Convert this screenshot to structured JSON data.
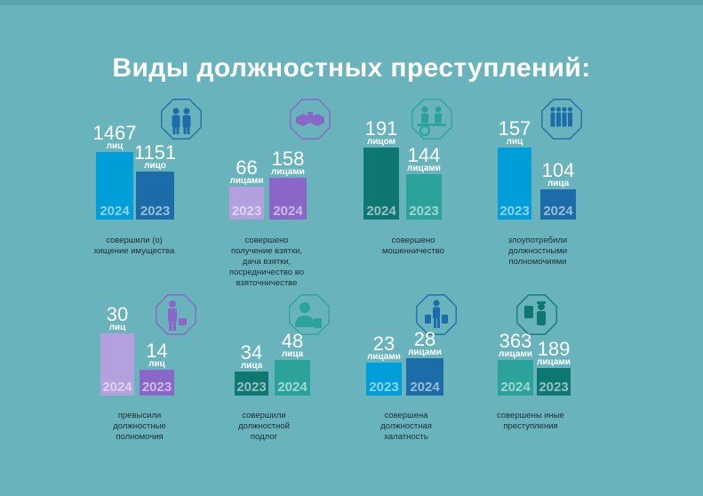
{
  "title": "Виды должностных преступлений:",
  "chart_data": {
    "type": "bar",
    "title": "Виды должностных преступлений:",
    "groups": [
      {
        "id": "theft",
        "caption": "совершили (о)\nхищение имущества",
        "icon": "two-people-icon",
        "bars": [
          {
            "year": "2024",
            "value": 1467,
            "value_label": "1467",
            "unit": "лиц",
            "color": "#009ed8"
          },
          {
            "year": "2023",
            "value": 1151,
            "value_label": "1151",
            "unit": "лицо",
            "color": "#1b6ca8"
          }
        ]
      },
      {
        "id": "bribe",
        "caption": "совершено\nполучение взятки,\nдача взятки,\nпосредничество во\nвзяточничестве",
        "icon": "handshake-icon",
        "bars": [
          {
            "year": "2023",
            "value": 66,
            "value_label": "66",
            "unit": "лицами",
            "color": "#b3a0dc"
          },
          {
            "year": "2024",
            "value": 158,
            "value_label": "158",
            "unit": "лицами",
            "color": "#8a66c6"
          }
        ]
      },
      {
        "id": "fraud",
        "caption": "совершено\nмошенничество",
        "icon": "money-exchange-icon",
        "bars": [
          {
            "year": "2024",
            "value": 191,
            "value_label": "191",
            "unit": "лицом",
            "color": "#0f7772"
          },
          {
            "year": "2023",
            "value": 144,
            "value_label": "144",
            "unit": "лицами",
            "color": "#2ba39b"
          }
        ]
      },
      {
        "id": "abuse",
        "caption": "злоупотребили\nдолжностными\nполномочиями",
        "icon": "crowd-icon",
        "bars": [
          {
            "year": "2023",
            "value": 157,
            "value_label": "157",
            "unit": "лиц",
            "color": "#009ed8"
          },
          {
            "year": "2024",
            "value": 104,
            "value_label": "104",
            "unit": "лица",
            "color": "#1b6ca8"
          }
        ]
      },
      {
        "id": "exceed",
        "caption": "превысили\nдолжностные\nполномочия",
        "icon": "businessman-icon",
        "bars": [
          {
            "year": "2024",
            "value": 30,
            "value_label": "30",
            "unit": "лиц",
            "color": "#b3a0dc"
          },
          {
            "year": "2023",
            "value": 14,
            "value_label": "14",
            "unit": "лиц",
            "color": "#8a66c6"
          }
        ]
      },
      {
        "id": "forgery",
        "caption": "совершили\nдолжностной\nподлог",
        "icon": "person-document-icon",
        "bars": [
          {
            "year": "2023",
            "value": 34,
            "value_label": "34",
            "unit": "лица",
            "color": "#0f7772"
          },
          {
            "year": "2024",
            "value": 48,
            "value_label": "48",
            "unit": "лица",
            "color": "#2ba39b"
          }
        ]
      },
      {
        "id": "negligence",
        "caption": "совершена\nдолжностная\nхалатность",
        "icon": "shopper-icon",
        "bars": [
          {
            "year": "2023",
            "value": 23,
            "value_label": "23",
            "unit": "лицами",
            "color": "#009ed8"
          },
          {
            "year": "2024",
            "value": 28,
            "value_label": "28",
            "unit": "лицами",
            "color": "#1b6ca8"
          }
        ]
      },
      {
        "id": "other",
        "caption": "совершены иные\nпреступления",
        "icon": "officer-icon",
        "bars": [
          {
            "year": "2024",
            "value": 363,
            "value_label": "363",
            "unit": "лицами",
            "color": "#2ba39b"
          },
          {
            "year": "2023",
            "value": 189,
            "value_label": "189",
            "unit": "лицами",
            "color": "#0f7772"
          }
        ]
      }
    ]
  }
}
